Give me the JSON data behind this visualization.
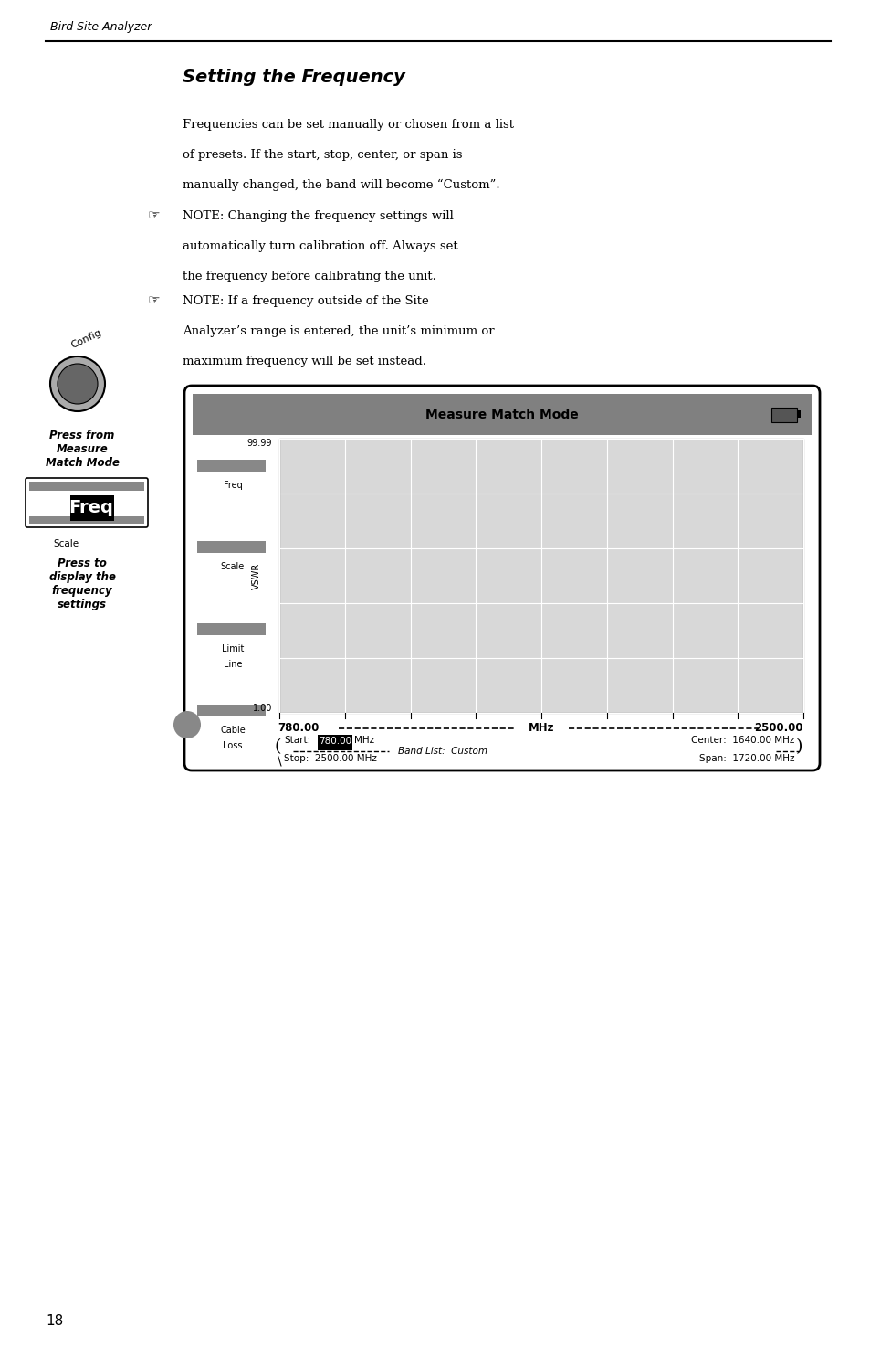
{
  "page_width": 9.54,
  "page_height": 14.75,
  "bg_color": "#ffffff",
  "header_text": "Bird Site Analyzer",
  "title": "Setting the Frequency",
  "para1": "Frequencies can be set manually or chosen from a list\nof presets. If the start, stop, center, or span is\nmanually changed, the band will become “Custom”.",
  "note1": "NOTE: Changing the frequency settings will\nautomatically turn calibration off. Always set\nthe frequency before calibrating the unit.",
  "note2": "NOTE: If a frequency outside of the Site\nAnalyzer’s range is entered, the unit’s minimum or\nmaximum frequency will be set instead.",
  "screen_title": "Measure Match Mode",
  "screen_bg": "#c8c8c8",
  "screen_dark_header": "#808080",
  "menu_items": [
    "Freq",
    "Scale",
    "Limit\nLine",
    "Cable\nLoss"
  ],
  "y_top_label": "99.99",
  "y_bottom_label": "1.00",
  "y_axis_label": "VSWR",
  "x_left_label": "780.00",
  "x_right_label": "2500.00",
  "x_mid_label": "MHz",
  "band_list": "Band List:  Custom",
  "sidebar_label1": "Press from\nMeasure\nMatch Mode",
  "sidebar_label2": "Press to\ndisplay the\nfrequency\nsettings",
  "page_number": "18",
  "config_label": "Config"
}
